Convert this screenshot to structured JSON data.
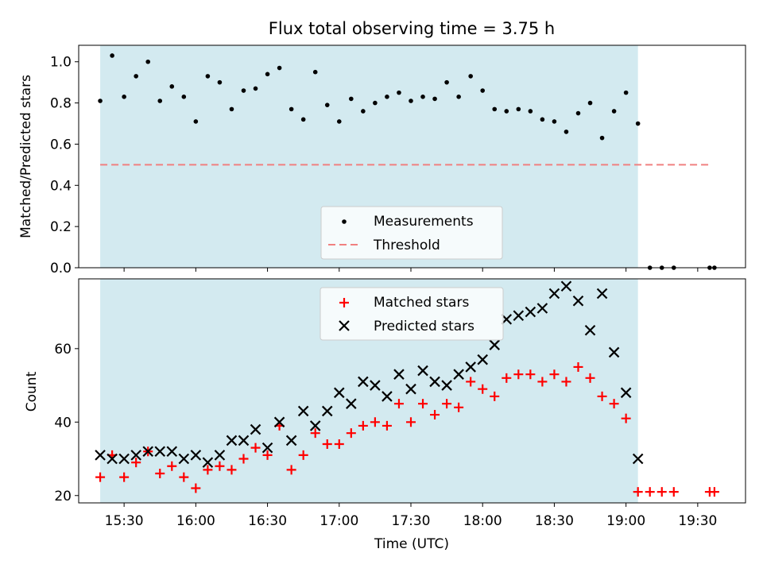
{
  "chart_data": [
    {
      "type": "scatter",
      "title": "Flux total observing time = 3.75 h",
      "ylabel": "Matched/Predicted stars",
      "xlabel": "",
      "xlim": [
        "15:11",
        "19:50"
      ],
      "ylim": [
        0.0,
        1.08
      ],
      "yticks": [
        0.0,
        0.2,
        0.4,
        0.6,
        0.8,
        1.0
      ],
      "ytick_labels": [
        "0.0",
        "0.2",
        "0.4",
        "0.6",
        "0.8",
        "1.0"
      ],
      "observing_window": [
        "15:20",
        "19:05"
      ],
      "observing_window_color": "#d3eaf0",
      "legend": {
        "position": "lower-center",
        "entries": [
          "Measurements",
          "Threshold"
        ]
      },
      "threshold": {
        "name": "Threshold",
        "value": 0.5,
        "x_range": [
          "15:20",
          "19:35"
        ],
        "color": "#f08080",
        "style": "dashed"
      },
      "series": [
        {
          "name": "Measurements",
          "marker": "dot",
          "color": "#000000",
          "x": [
            "15:20",
            "15:25",
            "15:30",
            "15:35",
            "15:40",
            "15:45",
            "15:50",
            "15:55",
            "16:00",
            "16:05",
            "16:10",
            "16:15",
            "16:20",
            "16:25",
            "16:30",
            "16:35",
            "16:40",
            "16:45",
            "16:50",
            "16:55",
            "17:00",
            "17:05",
            "17:10",
            "17:15",
            "17:20",
            "17:25",
            "17:30",
            "17:35",
            "17:40",
            "17:45",
            "17:50",
            "17:55",
            "18:00",
            "18:05",
            "18:10",
            "18:15",
            "18:20",
            "18:25",
            "18:30",
            "18:35",
            "18:40",
            "18:45",
            "18:50",
            "18:55",
            "19:00",
            "19:05",
            "19:10",
            "19:15",
            "19:20",
            "19:35",
            "19:37"
          ],
          "y": [
            0.81,
            1.03,
            0.83,
            0.93,
            1.0,
            0.81,
            0.88,
            0.83,
            0.71,
            0.93,
            0.9,
            0.77,
            0.86,
            0.87,
            0.94,
            0.97,
            0.77,
            0.72,
            0.95,
            0.79,
            0.71,
            0.82,
            0.76,
            0.8,
            0.83,
            0.85,
            0.81,
            0.83,
            0.82,
            0.9,
            0.83,
            0.93,
            0.86,
            0.77,
            0.76,
            0.77,
            0.76,
            0.72,
            0.71,
            0.66,
            0.75,
            0.8,
            0.63,
            0.76,
            0.85,
            0.7,
            0.0,
            0.0,
            0.0,
            0.0,
            0.0
          ]
        }
      ]
    },
    {
      "type": "scatter",
      "title": "",
      "ylabel": "Count",
      "xlabel": "Time (UTC)",
      "xlim": [
        "15:11",
        "19:50"
      ],
      "ylim": [
        18,
        79
      ],
      "yticks": [
        20,
        40,
        60
      ],
      "ytick_labels": [
        "20",
        "40",
        "60"
      ],
      "xticks": [
        "15:30",
        "16:00",
        "16:30",
        "17:00",
        "17:30",
        "18:00",
        "18:30",
        "19:00",
        "19:30"
      ],
      "observing_window": [
        "15:20",
        "19:05"
      ],
      "observing_window_color": "#d3eaf0",
      "legend": {
        "position": "upper-center",
        "entries": [
          "Matched stars",
          "Predicted stars"
        ]
      },
      "series": [
        {
          "name": "Matched stars",
          "marker": "plus",
          "color": "#ff0000",
          "x": [
            "15:20",
            "15:25",
            "15:30",
            "15:35",
            "15:40",
            "15:45",
            "15:50",
            "15:55",
            "16:00",
            "16:05",
            "16:10",
            "16:15",
            "16:20",
            "16:25",
            "16:30",
            "16:35",
            "16:40",
            "16:45",
            "16:50",
            "16:55",
            "17:00",
            "17:05",
            "17:10",
            "17:15",
            "17:20",
            "17:25",
            "17:30",
            "17:35",
            "17:40",
            "17:45",
            "17:50",
            "17:55",
            "18:00",
            "18:05",
            "18:10",
            "18:15",
            "18:20",
            "18:25",
            "18:30",
            "18:35",
            "18:40",
            "18:45",
            "18:50",
            "18:55",
            "19:00",
            "19:05",
            "19:10",
            "19:15",
            "19:20",
            "19:35",
            "19:37"
          ],
          "y": [
            25,
            31,
            25,
            29,
            32,
            26,
            28,
            25,
            22,
            27,
            28,
            27,
            30,
            33,
            31,
            39,
            27,
            31,
            37,
            34,
            34,
            37,
            39,
            40,
            39,
            45,
            40,
            45,
            42,
            45,
            44,
            51,
            49,
            47,
            52,
            53,
            53,
            51,
            53,
            51,
            55,
            52,
            47,
            45,
            41,
            21,
            21,
            21,
            21,
            21,
            21
          ]
        },
        {
          "name": "Predicted stars",
          "marker": "x",
          "color": "#000000",
          "x": [
            "15:20",
            "15:25",
            "15:30",
            "15:35",
            "15:40",
            "15:45",
            "15:50",
            "15:55",
            "16:00",
            "16:05",
            "16:10",
            "16:15",
            "16:20",
            "16:25",
            "16:30",
            "16:35",
            "16:40",
            "16:45",
            "16:50",
            "16:55",
            "17:00",
            "17:05",
            "17:10",
            "17:15",
            "17:20",
            "17:25",
            "17:30",
            "17:35",
            "17:40",
            "17:45",
            "17:50",
            "17:55",
            "18:00",
            "18:05",
            "18:10",
            "18:15",
            "18:20",
            "18:25",
            "18:30",
            "18:35",
            "18:40",
            "18:45",
            "18:50",
            "18:55",
            "19:00",
            "19:05"
          ],
          "y": [
            31,
            30,
            30,
            31,
            32,
            32,
            32,
            30,
            31,
            29,
            31,
            35,
            35,
            38,
            33,
            40,
            35,
            43,
            39,
            43,
            48,
            45,
            51,
            50,
            47,
            53,
            49,
            54,
            51,
            50,
            53,
            55,
            57,
            61,
            68,
            69,
            70,
            71,
            75,
            77,
            73,
            65,
            75,
            59,
            48,
            30
          ]
        }
      ]
    }
  ]
}
